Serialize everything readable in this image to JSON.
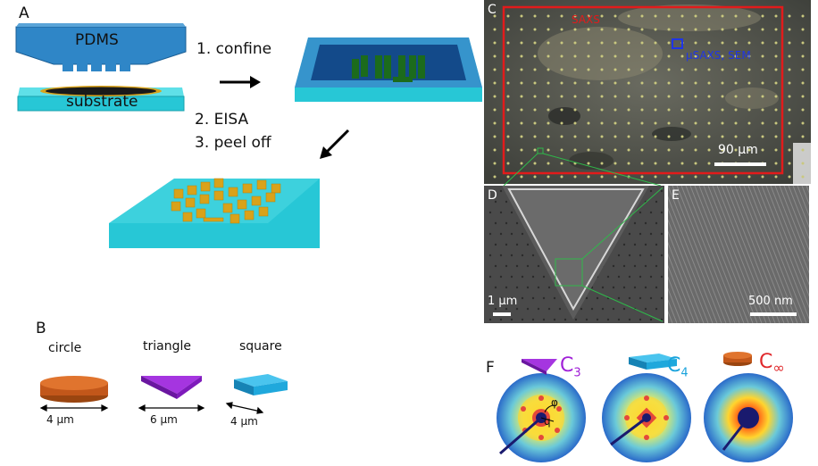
{
  "panels": {
    "a": "A",
    "b": "B",
    "c": "C",
    "d": "D",
    "e": "E",
    "f": "F"
  },
  "panel_a": {
    "pdms_label": "PDMS",
    "substrate_label": "substrate",
    "step1": "1. confine",
    "step2": "2. EISA",
    "step3": "3. peel off"
  },
  "panel_b": {
    "shapes": [
      {
        "name": "circle",
        "dim": "4 μm",
        "color": "#d0621c"
      },
      {
        "name": "triangle",
        "dim": "6 μm",
        "color": "#8d1fc4"
      },
      {
        "name": "square",
        "dim": "4 μm",
        "color": "#1fa8dc"
      }
    ]
  },
  "panel_c": {
    "saxs_label": "SAXS",
    "usaxs_label": "μSAXS, SEM",
    "scalebar": "90 μm"
  },
  "panel_d": {
    "scalebar": "1 μm"
  },
  "panel_e": {
    "scalebar": "500 nm"
  },
  "panel_f": {
    "patterns": [
      {
        "sym": "C",
        "sub": "3",
        "color": "#a020d8"
      },
      {
        "sym": "C",
        "sub": "4",
        "color": "#1aa3dc"
      },
      {
        "sym": "C",
        "sub": "∞",
        "color": "#e0282b"
      }
    ],
    "phi_label": "φ",
    "q_label": "q"
  },
  "colors": {
    "pdms": "#2f86c7",
    "substrate": "#27c7d6",
    "pillar_green": "#1c6b1c",
    "pillar_gold": "#d9a21a",
    "red_box": "#e21b1b",
    "blue_box": "#1f35e6"
  }
}
